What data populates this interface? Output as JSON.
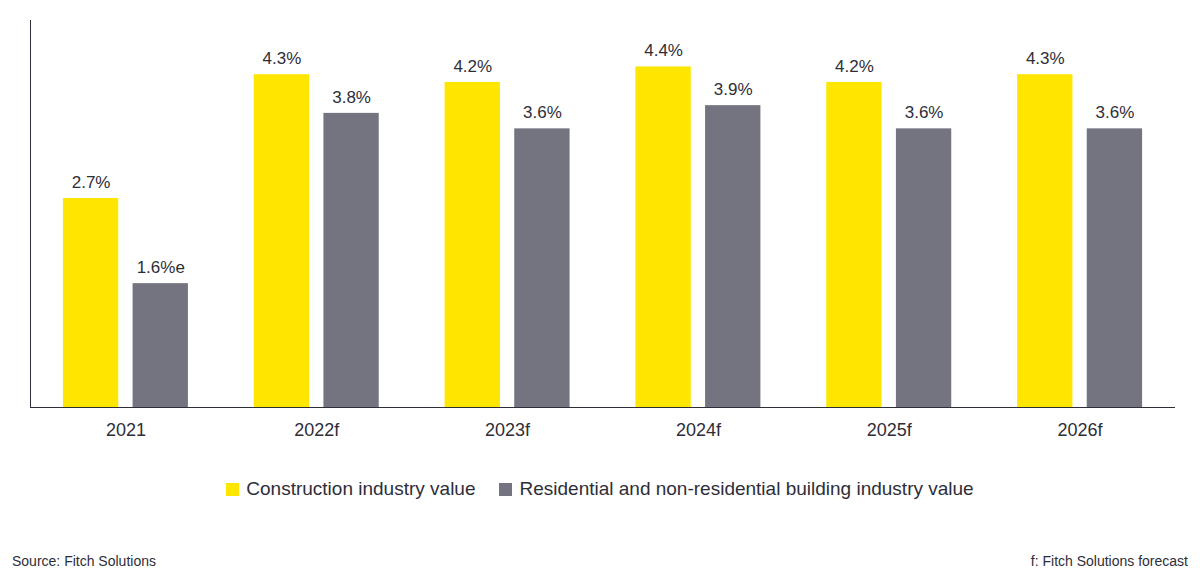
{
  "chart_data": {
    "type": "bar",
    "categories": [
      "2021",
      "2022f",
      "2023f",
      "2024f",
      "2025f",
      "2026f"
    ],
    "series": [
      {
        "name": "Construction industry value",
        "color": "#ffe600",
        "values": [
          2.7,
          4.3,
          4.2,
          4.4,
          4.2,
          4.3
        ],
        "value_labels": [
          "2.7%",
          "4.3%",
          "4.2%",
          "4.4%",
          "4.2%",
          "4.3%"
        ]
      },
      {
        "name": "Residential and non-residential building industry value",
        "color": "#747480",
        "values": [
          1.6,
          3.8,
          3.6,
          3.9,
          3.6,
          3.6
        ],
        "value_labels": [
          "1.6%e",
          "3.8%",
          "3.6%",
          "3.9%",
          "3.6%",
          "3.6%"
        ]
      }
    ],
    "ylim": [
      0,
      5
    ],
    "data_labels": true,
    "tick_labels": "x",
    "grid": false,
    "legend": "bottom",
    "source": "Source: Fitch Solutions",
    "note": "f: Fitch Solutions forecast"
  }
}
